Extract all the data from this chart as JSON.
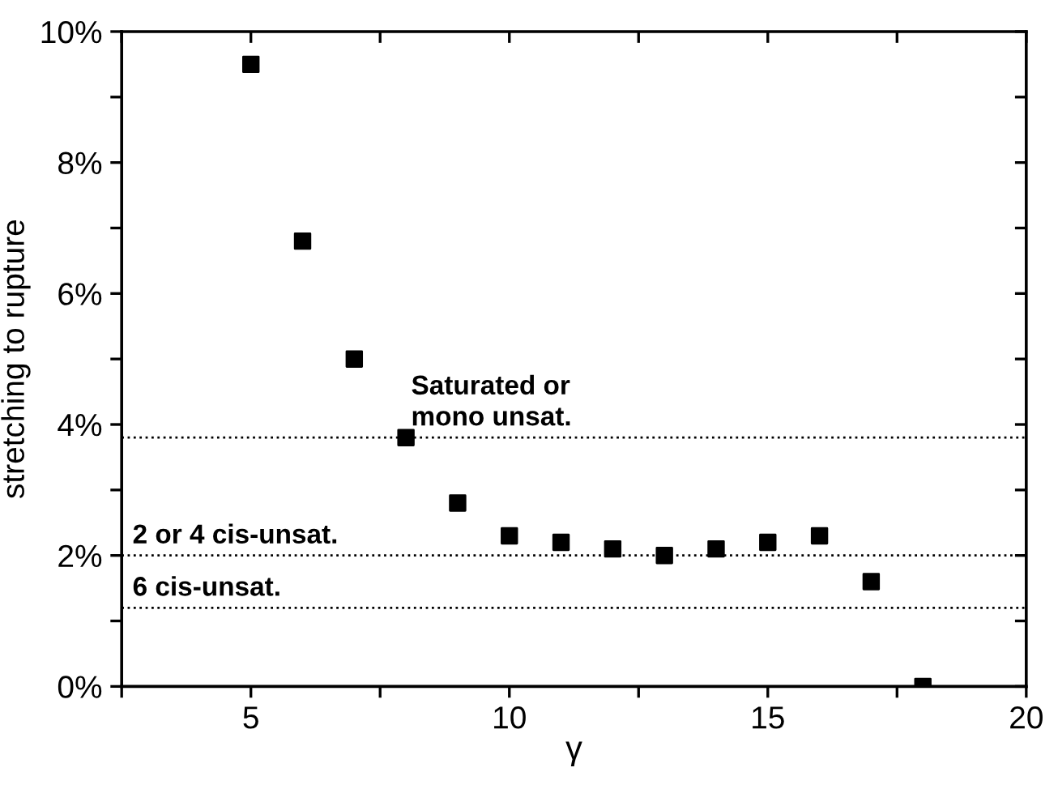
{
  "chart_data": {
    "type": "scatter",
    "xlabel": "γ",
    "ylabel": "stretching to rupture",
    "x": [
      5,
      6,
      7,
      8,
      9,
      10,
      11,
      12,
      13,
      14,
      15,
      16,
      17,
      18
    ],
    "series": [
      {
        "color": "#000000",
        "values": [
          9.5,
          6.8,
          5.0,
          3.8,
          2.8,
          2.3,
          2.2,
          2.1,
          2.0,
          2.1,
          2.2,
          2.3,
          1.6,
          0.0
        ]
      }
    ],
    "marker": "square",
    "xlim": [
      2.5,
      20
    ],
    "ylim": [
      0,
      10
    ],
    "xticks": [
      {
        "value": 2.5,
        "label": null
      },
      5,
      {
        "value": 7.5,
        "label": null
      },
      10,
      {
        "value": 12.5,
        "label": null
      },
      15,
      {
        "value": 17.5,
        "label": null
      },
      20
    ],
    "yticks": [
      {
        "value": 0,
        "label": "0%"
      },
      {
        "value": 1,
        "label": null
      },
      {
        "value": 2,
        "label": "2%"
      },
      {
        "value": 3,
        "label": null
      },
      {
        "value": 4,
        "label": "4%"
      },
      {
        "value": 5,
        "label": null
      },
      {
        "value": 6,
        "label": "6%"
      },
      {
        "value": 7,
        "label": null
      },
      {
        "value": 8,
        "label": "8%"
      },
      {
        "value": 9,
        "label": null
      },
      {
        "value": 10,
        "label": "10%"
      }
    ],
    "ref_lines": [
      {
        "axis": "y",
        "value": 3.8,
        "label": "Saturated or\nmono unsat.",
        "line_style": "dotted",
        "color": "#000000"
      },
      {
        "axis": "y",
        "value": 2.0,
        "label": "2 or 4 cis-unsat.",
        "line_style": "dotted",
        "color": "#000000"
      },
      {
        "axis": "y",
        "value": 1.2,
        "label": "6 cis-unsat.",
        "line_style": "dotted",
        "color": "#000000"
      }
    ],
    "grid": false,
    "legend": false
  }
}
